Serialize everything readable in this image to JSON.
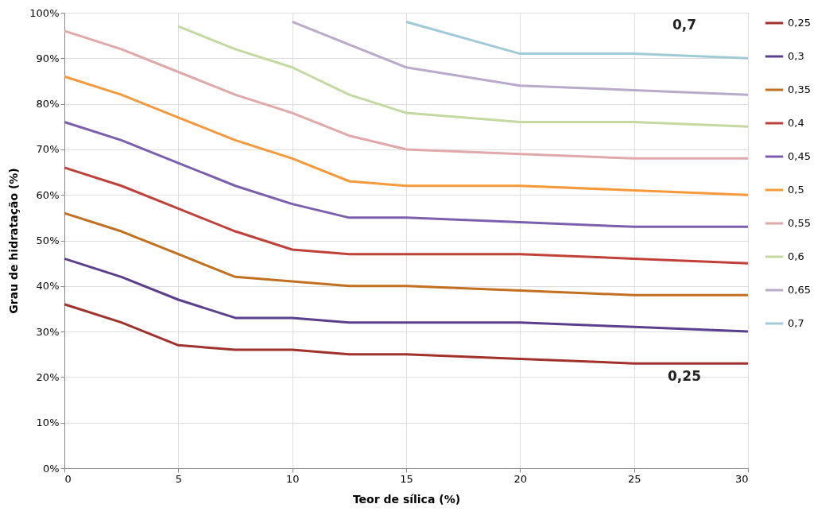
{
  "chart_data": {
    "type": "line",
    "xlabel": "Teor de sílica (%)",
    "ylabel": "Grau de hidratação (%)",
    "xlim": [
      0,
      30
    ],
    "xticks": [
      0,
      5,
      10,
      15,
      20,
      25,
      30
    ],
    "ylim": [
      0,
      100
    ],
    "yticks": [
      {
        "value": 0,
        "label": "0%"
      },
      {
        "value": 10,
        "label": "10%"
      },
      {
        "value": 20,
        "label": "20%"
      },
      {
        "value": 30,
        "label": "30%"
      },
      {
        "value": 40,
        "label": "40%"
      },
      {
        "value": 50,
        "label": "50%"
      },
      {
        "value": 60,
        "label": "60%"
      },
      {
        "value": 70,
        "label": "70%"
      },
      {
        "value": 80,
        "label": "80%"
      },
      {
        "value": 90,
        "label": "90%"
      },
      {
        "value": 100,
        "label": "100%"
      }
    ],
    "grid": true,
    "legend": "right",
    "marker": "none",
    "line_style": "solid",
    "annotations": [
      "0,7",
      "0,25"
    ],
    "series": [
      {
        "name": "0,25",
        "color": "#a0312c",
        "x": [
          0,
          2.5,
          5,
          7.5,
          10,
          12.5,
          15,
          20,
          25,
          30
        ],
        "values": [
          36,
          32,
          27,
          26,
          26,
          25,
          25,
          24,
          23,
          23
        ]
      },
      {
        "name": "0,3",
        "color": "#5b3f8c",
        "x": [
          0,
          2.5,
          5,
          7.5,
          10,
          12.5,
          15,
          20,
          25,
          30
        ],
        "values": [
          46,
          42,
          37,
          33,
          33,
          32,
          32,
          32,
          31,
          30
        ]
      },
      {
        "name": "0,35",
        "color": "#c0701e",
        "x": [
          0,
          2.5,
          5,
          7.5,
          10,
          12.5,
          15,
          20,
          25,
          30
        ],
        "values": [
          56,
          52,
          47,
          42,
          41,
          40,
          40,
          39,
          38,
          38
        ]
      },
      {
        "name": "0,4",
        "color": "#c0403a",
        "x": [
          0,
          2.5,
          5,
          7.5,
          10,
          12.5,
          15,
          20,
          25,
          30
        ],
        "values": [
          66,
          62,
          57,
          52,
          48,
          47,
          47,
          47,
          46,
          45
        ]
      },
      {
        "name": "0,45",
        "color": "#7b5fad",
        "x": [
          0,
          2.5,
          5,
          7.5,
          10,
          12.5,
          15,
          20,
          25,
          30
        ],
        "values": [
          76,
          72,
          67,
          62,
          58,
          55,
          55,
          54,
          53,
          53
        ]
      },
      {
        "name": "0,5",
        "color": "#f59a3a",
        "x": [
          0,
          2.5,
          5,
          7.5,
          10,
          12.5,
          15,
          20,
          25,
          30
        ],
        "values": [
          86,
          82,
          77,
          72,
          68,
          63,
          62,
          62,
          61,
          60
        ]
      },
      {
        "name": "0,55",
        "color": "#e0a8a8",
        "x": [
          0,
          2.5,
          5,
          7.5,
          10,
          12.5,
          15,
          20,
          25,
          30
        ],
        "values": [
          96,
          92,
          87,
          82,
          78,
          73,
          70,
          69,
          68,
          68
        ]
      },
      {
        "name": "0,6",
        "color": "#c3d9a0",
        "x": [
          5,
          7.5,
          10,
          12.5,
          15,
          20,
          25,
          30
        ],
        "values": [
          97,
          92,
          88,
          82,
          78,
          76,
          76,
          75
        ]
      },
      {
        "name": "0,65",
        "color": "#b9aacb",
        "x": [
          10,
          12.5,
          15,
          20,
          25,
          30
        ],
        "values": [
          98,
          93,
          88,
          84,
          83,
          82
        ]
      },
      {
        "name": "0,7",
        "color": "#9fcad6",
        "x": [
          15,
          20,
          25,
          30
        ],
        "values": [
          98,
          91,
          91,
          90
        ]
      }
    ]
  }
}
